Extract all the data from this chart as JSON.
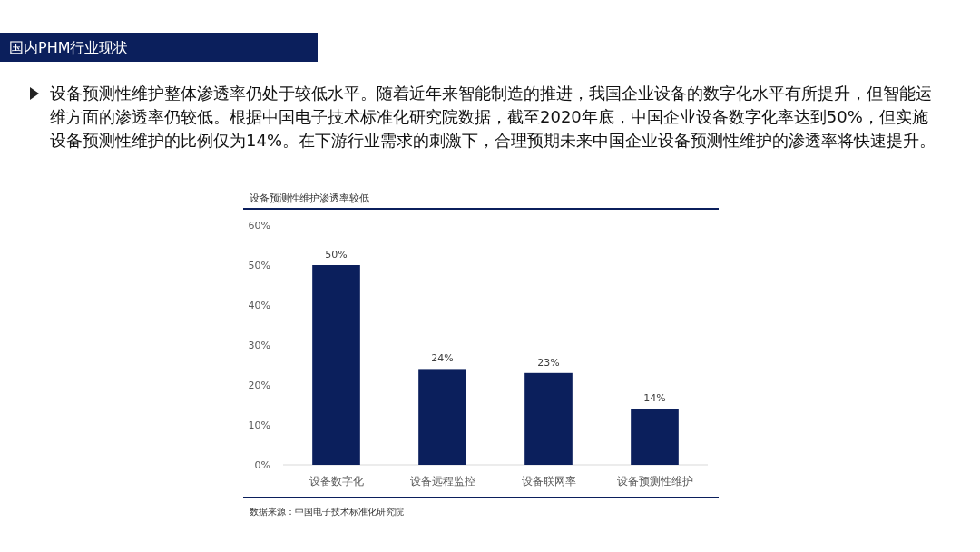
{
  "chart_data": {
    "type": "bar",
    "title": "设备预测性维护渗透率较低",
    "categories": [
      "设备数字化",
      "设备远程监控",
      "设备联网率",
      "设备预测性维护"
    ],
    "values": [
      50,
      24,
      23,
      14
    ],
    "value_labels": [
      "50%",
      "24%",
      "23%",
      "14%"
    ],
    "color": "#0b1f5c",
    "ylim": [
      0,
      60
    ],
    "yticks": [
      {
        "value": 0,
        "label": "0%"
      },
      {
        "value": 10,
        "label": "10%"
      },
      {
        "value": 20,
        "label": "20%"
      },
      {
        "value": 30,
        "label": "30%"
      },
      {
        "value": 40,
        "label": "40%"
      },
      {
        "value": 50,
        "label": "50%"
      },
      {
        "value": 60,
        "label": "60%"
      }
    ],
    "grid": false,
    "annotations": [
      "国内PHM行业现状",
      "设备预测性维护整体渗透率仍处于较低水平。随着近年来智能制造的推进，我国企业设备的数字化水平有所提升，但智能运维方面的渗透率仍较低。根据中国电子技术标准化研究院数据，截至2020年底，中国企业设备数字化率达到50%，但实施设备预测性维护的比例仅为14%。在下游行业需求的刺激下，合理预期未来中国企业设备预测性维护的渗透率将快速提升。",
      "数据来源：中国电子技术标准化研究院"
    ]
  }
}
